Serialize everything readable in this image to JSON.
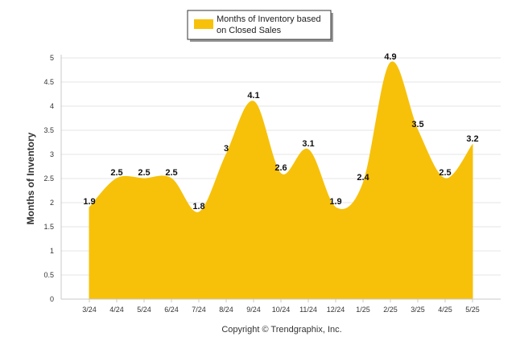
{
  "chart_data": {
    "type": "area",
    "categories": [
      "3/24",
      "4/24",
      "5/24",
      "6/24",
      "7/24",
      "8/24",
      "9/24",
      "10/24",
      "11/24",
      "12/24",
      "1/25",
      "2/25",
      "3/25",
      "4/25",
      "5/25"
    ],
    "series": [
      {
        "name": "Months of Inventory based on Closed Sales",
        "values": [
          1.9,
          2.5,
          2.5,
          2.5,
          1.8,
          3,
          4.1,
          2.6,
          3.1,
          1.9,
          2.4,
          4.9,
          3.5,
          2.5,
          3.2
        ],
        "data_labels": [
          "1.9",
          "2.5",
          "2.5",
          "2.5",
          "1.8",
          "3",
          "4.1",
          "2.6",
          "3.1",
          "1.9",
          "2.4",
          "4.9",
          "3.5",
          "2.5",
          "3.2"
        ],
        "color": "#F7C10A"
      }
    ],
    "legend": {
      "line1": "Months of Inventory based",
      "line2": "on Closed Sales",
      "position": "top-center"
    },
    "ylabel": "Months of Inventory",
    "ylim": [
      0,
      5
    ],
    "yticks": [
      "0",
      "0.5",
      "1",
      "1.5",
      "2",
      "2.5",
      "3",
      "3.5",
      "4",
      "4.5",
      "5"
    ],
    "grid": true,
    "credit": "Copyright © Trendgraphix, Inc."
  }
}
